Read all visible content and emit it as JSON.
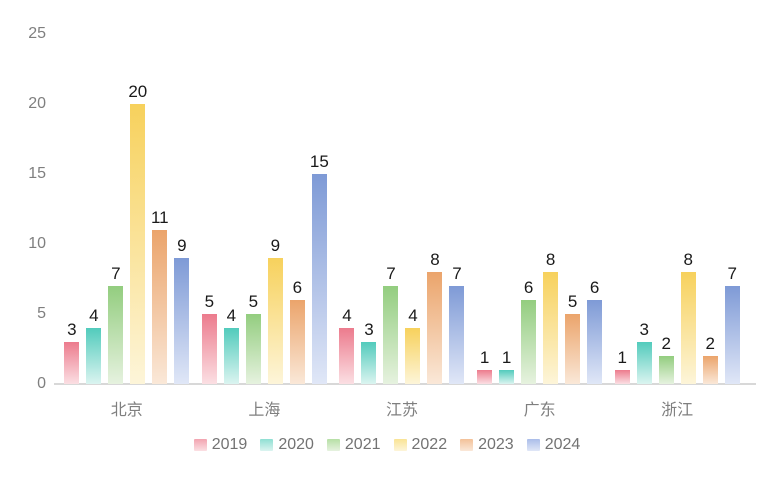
{
  "chart_data": {
    "type": "bar",
    "categories": [
      "北京",
      "上海",
      "江苏",
      "广东",
      "浙江"
    ],
    "series": [
      {
        "name": "2019",
        "values": [
          3,
          5,
          4,
          1,
          1
        ],
        "color_top": "#ec7b8d",
        "color_bottom": "#fbdfe3",
        "swatch": "#f2a3b0"
      },
      {
        "name": "2020",
        "values": [
          4,
          4,
          3,
          1,
          3
        ],
        "color_top": "#52cbbc",
        "color_bottom": "#dbf4f0",
        "swatch": "#8fdfd3"
      },
      {
        "name": "2021",
        "values": [
          7,
          5,
          7,
          6,
          2
        ],
        "color_top": "#93cd7f",
        "color_bottom": "#e6f2df",
        "swatch": "#b6dfa5"
      },
      {
        "name": "2022",
        "values": [
          20,
          9,
          4,
          8,
          8
        ],
        "color_top": "#f7d15c",
        "color_bottom": "#fdf5d9",
        "swatch": "#f9e394"
      },
      {
        "name": "2023",
        "values": [
          11,
          6,
          8,
          5,
          2
        ],
        "color_top": "#eba46b",
        "color_bottom": "#fae8d8",
        "swatch": "#f3c198"
      },
      {
        "name": "2024",
        "values": [
          9,
          15,
          7,
          6,
          7
        ],
        "color_top": "#7e9ad6",
        "color_bottom": "#e0e7f7",
        "swatch": "#aabde9"
      }
    ],
    "yticks": [
      0,
      5,
      10,
      15,
      20,
      25
    ],
    "ylim": [
      0,
      25
    ],
    "grid": false,
    "legend_position": "bottom",
    "axis_label_color": "#7f7f7f",
    "value_label_color": "#1a1a1a",
    "baseline_color": "#d8d8d8",
    "background_color": "#ffffff"
  }
}
